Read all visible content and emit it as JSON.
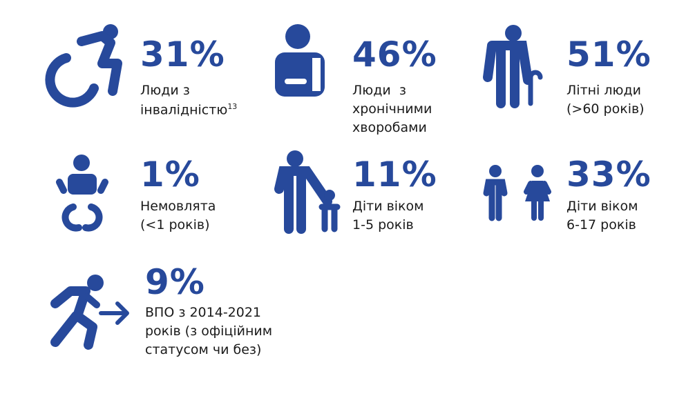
{
  "items": [
    {
      "value": "31%",
      "label": [
        "Люди з",
        "інвалідністю"
      ],
      "note": "13"
    },
    {
      "value": "46%",
      "label": [
        "Люди  з",
        "хронічними",
        "хворобами"
      ]
    },
    {
      "value": "51%",
      "label": [
        "Літні люди",
        "(>60 років)"
      ]
    },
    {
      "value": "1%",
      "label": [
        "Немовлята",
        "(<1 років)"
      ]
    },
    {
      "value": "11%",
      "label": [
        "Діти віком",
        "1-5 років"
      ]
    },
    {
      "value": "33%",
      "label": [
        "Діти віком",
        "6-17 років"
      ]
    },
    {
      "value": "9%",
      "label": [
        "ВПО з 2014-2021",
        "років (з офіційним",
        "статусом чи без)"
      ]
    }
  ]
}
